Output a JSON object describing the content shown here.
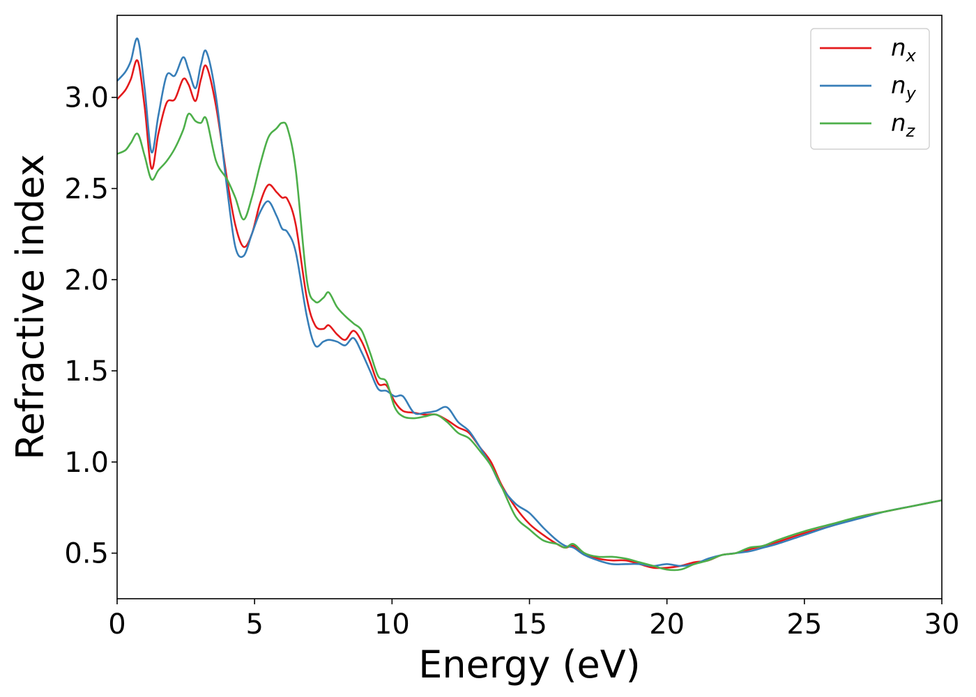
{
  "chart_data": {
    "type": "line",
    "xlabel": "Energy (eV)",
    "ylabel": "Refractive index",
    "xlim": [
      0,
      30
    ],
    "ylim": [
      0.25,
      3.45
    ],
    "xticks": [
      0,
      5,
      10,
      15,
      20,
      25,
      30
    ],
    "xtick_labels": [
      "0",
      "5",
      "10",
      "15",
      "20",
      "25",
      "30"
    ],
    "yticks": [
      0.5,
      1.0,
      1.5,
      2.0,
      2.5,
      3.0
    ],
    "ytick_labels": [
      "0.5",
      "1.0",
      "1.5",
      "2.0",
      "2.5",
      "3.0"
    ],
    "grid": false,
    "legend_position": "top-right",
    "series": [
      {
        "name": "n_x",
        "label_base": "n",
        "label_sub": "x",
        "color": "#e41a1c",
        "x": [
          0,
          0.3,
          0.5,
          0.75,
          1.0,
          1.25,
          1.5,
          1.8,
          2.1,
          2.4,
          2.6,
          2.85,
          3.05,
          3.25,
          3.6,
          4.0,
          4.3,
          4.6,
          4.9,
          5.2,
          5.5,
          5.8,
          6.0,
          6.2,
          6.5,
          6.9,
          7.2,
          7.5,
          7.7,
          8.0,
          8.3,
          8.6,
          8.9,
          9.2,
          9.5,
          9.8,
          10.1,
          10.4,
          10.8,
          11.2,
          11.6,
          12.0,
          12.4,
          12.8,
          13.2,
          13.6,
          14.0,
          14.5,
          15.0,
          15.5,
          16.0,
          16.3,
          16.6,
          17.0,
          17.5,
          18.0,
          18.5,
          19.0,
          19.5,
          20.0,
          20.5,
          21.0,
          21.5,
          22.0,
          22.5,
          23.0,
          23.5,
          24.0,
          25.0,
          26.0,
          27.0,
          28.0,
          29.0,
          30.0
        ],
        "y": [
          2.99,
          3.04,
          3.1,
          3.2,
          2.95,
          2.61,
          2.8,
          2.97,
          2.99,
          3.1,
          3.07,
          2.98,
          3.1,
          3.17,
          2.95,
          2.55,
          2.3,
          2.18,
          2.25,
          2.42,
          2.52,
          2.48,
          2.45,
          2.44,
          2.3,
          1.9,
          1.75,
          1.73,
          1.75,
          1.7,
          1.67,
          1.72,
          1.66,
          1.55,
          1.43,
          1.42,
          1.33,
          1.28,
          1.27,
          1.26,
          1.26,
          1.23,
          1.19,
          1.16,
          1.08,
          1.0,
          0.87,
          0.75,
          0.66,
          0.6,
          0.55,
          0.53,
          0.54,
          0.5,
          0.47,
          0.46,
          0.46,
          0.44,
          0.42,
          0.42,
          0.43,
          0.45,
          0.46,
          0.49,
          0.5,
          0.52,
          0.54,
          0.56,
          0.61,
          0.65,
          0.7,
          0.73,
          0.76,
          0.79
        ]
      },
      {
        "name": "n_y",
        "label_base": "n",
        "label_sub": "y",
        "color": "#377eb8",
        "x": [
          0,
          0.3,
          0.5,
          0.75,
          1.0,
          1.25,
          1.5,
          1.8,
          2.1,
          2.4,
          2.6,
          2.85,
          3.05,
          3.25,
          3.6,
          4.0,
          4.3,
          4.6,
          4.9,
          5.2,
          5.5,
          5.8,
          6.0,
          6.2,
          6.5,
          6.9,
          7.2,
          7.5,
          7.7,
          8.0,
          8.3,
          8.6,
          8.9,
          9.2,
          9.5,
          9.8,
          10.1,
          10.4,
          10.8,
          11.2,
          11.6,
          12.0,
          12.4,
          12.8,
          13.2,
          13.6,
          14.0,
          14.5,
          15.0,
          15.5,
          16.0,
          16.3,
          16.6,
          17.0,
          17.5,
          18.0,
          18.5,
          19.0,
          19.5,
          20.0,
          20.5,
          21.0,
          21.5,
          22.0,
          22.5,
          23.0,
          23.5,
          24.0,
          25.0,
          26.0,
          27.0,
          28.0,
          29.0,
          30.0
        ],
        "y": [
          3.09,
          3.14,
          3.2,
          3.32,
          3.05,
          2.7,
          2.9,
          3.12,
          3.12,
          3.22,
          3.15,
          3.05,
          3.18,
          3.25,
          3.0,
          2.5,
          2.18,
          2.13,
          2.25,
          2.37,
          2.43,
          2.35,
          2.28,
          2.26,
          2.15,
          1.8,
          1.64,
          1.66,
          1.67,
          1.66,
          1.64,
          1.68,
          1.6,
          1.5,
          1.4,
          1.39,
          1.36,
          1.36,
          1.27,
          1.27,
          1.28,
          1.3,
          1.22,
          1.17,
          1.08,
          0.98,
          0.86,
          0.77,
          0.72,
          0.64,
          0.57,
          0.54,
          0.53,
          0.49,
          0.46,
          0.44,
          0.44,
          0.44,
          0.43,
          0.44,
          0.43,
          0.44,
          0.47,
          0.49,
          0.5,
          0.51,
          0.53,
          0.55,
          0.6,
          0.65,
          0.69,
          0.73,
          0.76,
          0.79
        ]
      },
      {
        "name": "n_z",
        "label_base": "n",
        "label_sub": "z",
        "color": "#4daf4a",
        "x": [
          0,
          0.3,
          0.5,
          0.75,
          1.0,
          1.25,
          1.5,
          1.8,
          2.1,
          2.4,
          2.6,
          2.85,
          3.05,
          3.25,
          3.6,
          4.0,
          4.3,
          4.6,
          4.9,
          5.2,
          5.5,
          5.8,
          6.0,
          6.2,
          6.5,
          6.9,
          7.2,
          7.5,
          7.7,
          8.0,
          8.3,
          8.6,
          8.9,
          9.2,
          9.5,
          9.8,
          10.1,
          10.4,
          10.8,
          11.2,
          11.6,
          12.0,
          12.4,
          12.8,
          13.2,
          13.6,
          14.0,
          14.5,
          15.0,
          15.5,
          16.0,
          16.3,
          16.6,
          17.0,
          17.5,
          18.0,
          18.5,
          19.0,
          19.5,
          20.0,
          20.5,
          21.0,
          21.5,
          22.0,
          22.5,
          23.0,
          23.5,
          24.0,
          25.0,
          26.0,
          27.0,
          28.0,
          29.0,
          30.0
        ],
        "y": [
          2.69,
          2.71,
          2.75,
          2.8,
          2.68,
          2.55,
          2.6,
          2.65,
          2.72,
          2.82,
          2.91,
          2.87,
          2.86,
          2.88,
          2.65,
          2.55,
          2.45,
          2.33,
          2.45,
          2.63,
          2.78,
          2.83,
          2.86,
          2.83,
          2.6,
          2.0,
          1.88,
          1.9,
          1.93,
          1.85,
          1.8,
          1.76,
          1.72,
          1.6,
          1.47,
          1.44,
          1.3,
          1.25,
          1.24,
          1.25,
          1.26,
          1.22,
          1.16,
          1.13,
          1.06,
          0.98,
          0.86,
          0.7,
          0.63,
          0.57,
          0.55,
          0.53,
          0.55,
          0.5,
          0.48,
          0.48,
          0.47,
          0.45,
          0.43,
          0.41,
          0.41,
          0.44,
          0.46,
          0.49,
          0.5,
          0.53,
          0.54,
          0.57,
          0.62,
          0.66,
          0.7,
          0.73,
          0.76,
          0.79
        ]
      }
    ]
  }
}
